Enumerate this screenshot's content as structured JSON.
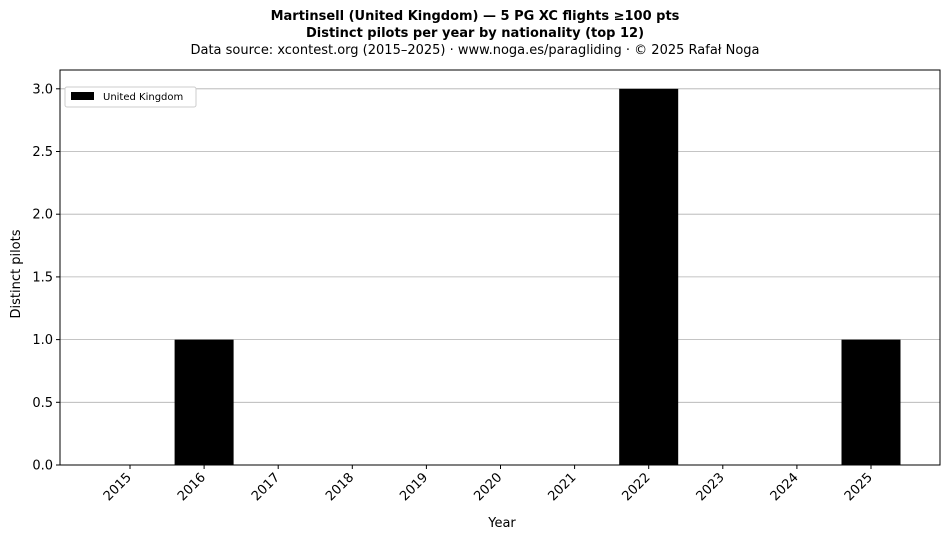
{
  "chart_data": {
    "type": "bar",
    "title": "Martinsell (United Kingdom)  —  5 PG XC flights ≥100 pts",
    "title_line2": "Distinct pilots per year by nationality (top 12)",
    "subtitle": "Data source: xcontest.org (2015–2025)  ·  www.noga.es/paragliding  ·  © 2025 Rafał Noga",
    "xlabel": "Year",
    "ylabel": "Distinct pilots",
    "categories": [
      "2015",
      "2016",
      "2017",
      "2018",
      "2019",
      "2020",
      "2021",
      "2022",
      "2023",
      "2024",
      "2025"
    ],
    "series": [
      {
        "name": "United Kingdom",
        "color": "#000000",
        "values": [
          0,
          1,
          0,
          0,
          0,
          0,
          0,
          3,
          0,
          0,
          1
        ]
      }
    ],
    "ylim": [
      0,
      3.15
    ],
    "yticks": [
      "0.0",
      "0.5",
      "1.0",
      "1.5",
      "2.0",
      "2.5",
      "3.0"
    ],
    "grid": "y",
    "legend_position": "top-left"
  }
}
